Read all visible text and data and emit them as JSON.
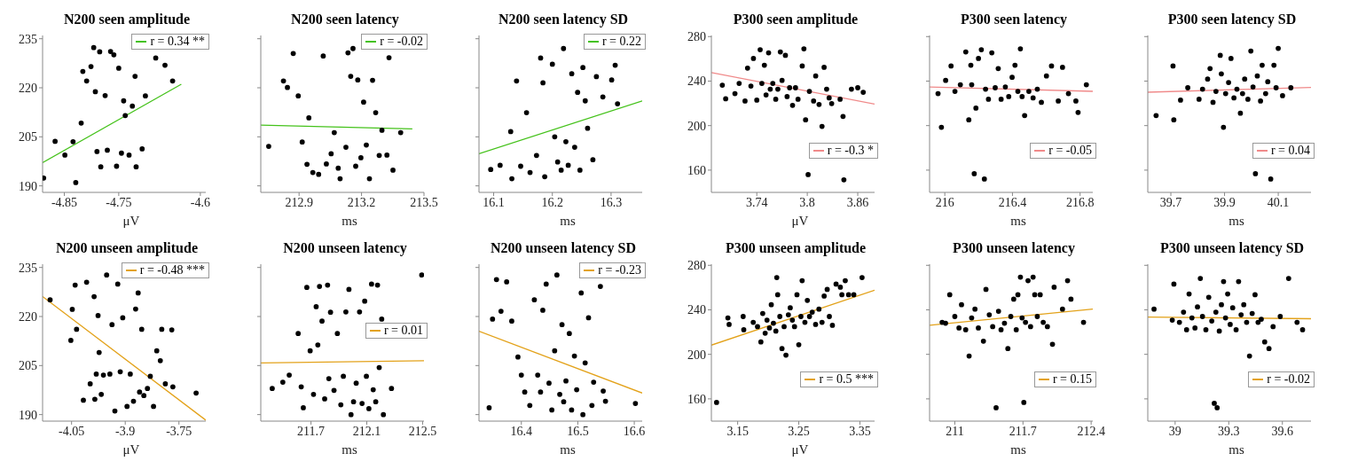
{
  "chart_data": [
    {
      "type": "scatter",
      "title": "N200 seen amplitude",
      "xlabel": "μV",
      "xlim": [
        -4.89,
        -4.59
      ],
      "xticks": [
        -4.85,
        -4.75,
        -4.6
      ],
      "ylim": [
        188,
        236
      ],
      "yticks": [
        190,
        205,
        220,
        235
      ],
      "legend": "top right",
      "series": [
        {
          "type": "scatter",
          "color": "#000000",
          "marker": "circle",
          "x": [
            -4.888,
            -4.867,
            -4.849,
            -4.834,
            -4.829,
            -4.819,
            -4.816,
            -4.809,
            -4.801,
            -4.796,
            -4.793,
            -4.79,
            -4.785,
            -4.783,
            -4.775,
            -4.771,
            -4.765,
            -4.759,
            -4.754,
            -4.75,
            -4.745,
            -4.741,
            -4.738,
            -4.731,
            -4.725,
            -4.72,
            -4.718,
            -4.707,
            -4.701,
            -4.682,
            -4.665,
            -4.651
          ],
          "values": [
            192.4,
            203.6,
            199.4,
            203.5,
            191.0,
            209.2,
            225.0,
            222.1,
            226.5,
            232.3,
            218.8,
            200.5,
            231.0,
            195.8,
            217.6,
            200.9,
            231.1,
            230.1,
            196.0,
            226.0,
            200.0,
            216.0,
            211.5,
            199.4,
            214.4,
            223.5,
            195.8,
            201.3,
            217.5,
            229.1,
            226.9,
            222.1
          ]
        },
        {
          "type": "line",
          "name": "r = 0.34 **",
          "color": "#44c21a",
          "marker": "none",
          "x": [
            -4.89,
            -4.635
          ],
          "values": [
            197.1,
            221.1
          ]
        }
      ]
    },
    {
      "type": "scatter",
      "title": "N200 seen latency",
      "xlabel": "ms",
      "xlim": [
        212.716,
        213.5
      ],
      "xticks": [
        212.9,
        213.2,
        213.5
      ],
      "ylim": [
        188,
        236
      ],
      "yticks": [
        190,
        205,
        220,
        235
      ],
      "tick_labels": "x",
      "legend": "top right",
      "series": [
        {
          "type": "scatter",
          "color": "#000000",
          "marker": "circle",
          "x": [
            212.754,
            212.825,
            212.844,
            212.872,
            212.896,
            212.915,
            212.938,
            212.947,
            212.966,
            212.994,
            213.016,
            213.031,
            213.054,
            213.069,
            213.088,
            213.097,
            213.125,
            213.135,
            213.148,
            213.159,
            213.172,
            213.182,
            213.197,
            213.21,
            213.223,
            213.238,
            213.253,
            213.268,
            213.285,
            213.298,
            213.322,
            213.332,
            213.351,
            213.388
          ],
          "values": [
            202.1,
            222.1,
            220.1,
            230.5,
            217.5,
            203.4,
            196.6,
            210.8,
            194.1,
            193.5,
            229.7,
            196.7,
            199.8,
            206.3,
            195.4,
            192.2,
            201.8,
            230.7,
            223.5,
            232.0,
            196.0,
            222.4,
            198.6,
            215.6,
            202.5,
            192.2,
            222.3,
            212.4,
            199.3,
            207.0,
            199.4,
            229.2,
            194.8,
            206.3
          ]
        },
        {
          "type": "line",
          "name": "r = -0.02",
          "color": "#44c21a",
          "marker": "none",
          "x": [
            212.716,
            213.444
          ],
          "values": [
            208.6,
            207.4
          ]
        }
      ]
    },
    {
      "type": "scatter",
      "title": "N200 seen latency SD",
      "xlabel": "ms",
      "xlim": [
        16.075,
        16.353
      ],
      "xticks": [
        16.1,
        16.2,
        16.3
      ],
      "ylim": [
        188,
        236
      ],
      "yticks": [
        190,
        205,
        220,
        235
      ],
      "tick_labels": "x",
      "legend": "top right",
      "series": [
        {
          "type": "scatter",
          "color": "#000000",
          "marker": "circle",
          "x": [
            16.095,
            16.111,
            16.129,
            16.131,
            16.139,
            16.146,
            16.156,
            16.162,
            16.173,
            16.18,
            16.184,
            16.187,
            16.2,
            16.204,
            16.209,
            16.215,
            16.219,
            16.223,
            16.227,
            16.233,
            16.238,
            16.243,
            16.247,
            16.252,
            16.256,
            16.26,
            16.269,
            16.275,
            16.286,
            16.301,
            16.307,
            16.311
          ],
          "values": [
            195.0,
            196.3,
            206.6,
            192.2,
            222.1,
            196.0,
            212.4,
            194.1,
            199.3,
            229.1,
            221.5,
            192.8,
            227.2,
            205.0,
            197.3,
            194.8,
            232.0,
            203.5,
            196.3,
            224.3,
            201.8,
            218.6,
            194.8,
            226.2,
            216.0,
            207.6,
            198.0,
            223.4,
            217.2,
            222.4,
            226.9,
            215.1
          ]
        },
        {
          "type": "line",
          "name": "r = 0.22",
          "color": "#44c21a",
          "marker": "none",
          "x": [
            16.075,
            16.353
          ],
          "values": [
            199.8,
            216.0
          ]
        }
      ]
    },
    {
      "type": "scatter",
      "title": "P300 seen amplitude",
      "xlabel": "μV",
      "xlim": [
        3.686,
        3.88
      ],
      "xticks": [
        3.74,
        3.8,
        3.86
      ],
      "ylim": [
        140,
        281
      ],
      "yticks": [
        160,
        200,
        240,
        280
      ],
      "legend": "bottom right",
      "series": [
        {
          "type": "scatter",
          "color": "#000000",
          "marker": "circle",
          "x": [
            3.699,
            3.703,
            3.714,
            3.719,
            3.726,
            3.729,
            3.733,
            3.736,
            3.74,
            3.744,
            3.746,
            3.749,
            3.751,
            3.754,
            3.756,
            3.759,
            3.7625,
            3.765,
            3.768,
            3.77,
            3.774,
            3.776,
            3.779,
            3.7825,
            3.786,
            3.789,
            3.794,
            3.796,
            3.798,
            3.801,
            3.8025,
            3.8075,
            3.81,
            3.814,
            3.8175,
            3.82,
            3.823,
            3.826,
            3.829,
            3.839,
            3.8425,
            3.8435,
            3.8525,
            3.86,
            3.8665
          ],
          "values": [
            236.3,
            224.1,
            228.8,
            237.9,
            222.1,
            251.7,
            235.5,
            260.3,
            222.9,
            268.2,
            237.9,
            254.3,
            227.6,
            265.4,
            232.8,
            237.9,
            223.7,
            232.8,
            266.2,
            240.6,
            263.1,
            226.1,
            234.0,
            218.2,
            234.0,
            223.7,
            253.6,
            269.0,
            205.2,
            156.0,
            230.8,
            222.1,
            244.6,
            219.0,
            199.3,
            252.4,
            232.8,
            224.9,
            219.8,
            223.7,
            208.3,
            151.3,
            232.8,
            234.0,
            230.0
          ]
        },
        {
          "type": "line",
          "name": "r = -0.3 *",
          "color": "#f08a8a",
          "marker": "none",
          "x": [
            3.686,
            3.88
          ],
          "values": [
            247.7,
            219.4
          ]
        }
      ]
    },
    {
      "type": "scatter",
      "title": "P300 seen latency",
      "xlabel": "ms",
      "xlim": [
        215.91,
        216.875
      ],
      "xticks": [
        216,
        216.4,
        216.8
      ],
      "ylim": [
        140,
        281
      ],
      "yticks": [
        160,
        200,
        240,
        280
      ],
      "tick_labels": "x",
      "legend": "bottom right",
      "series": [
        {
          "type": "scatter",
          "color": "#000000",
          "marker": "circle",
          "x": [
            215.96,
            215.98,
            216.005,
            216.037,
            216.06,
            216.092,
            216.124,
            216.142,
            216.154,
            216.159,
            216.174,
            216.184,
            216.199,
            216.216,
            216.234,
            216.241,
            216.258,
            216.278,
            216.298,
            216.316,
            216.333,
            216.358,
            216.378,
            216.398,
            216.415,
            216.432,
            216.447,
            216.457,
            216.472,
            216.497,
            216.522,
            216.547,
            216.571,
            216.601,
            216.631,
            216.671,
            216.696,
            216.731,
            216.775,
            216.788,
            216.837
          ],
          "values": [
            228.8,
            198.5,
            240.6,
            253.6,
            230.8,
            236.7,
            266.2,
            205.2,
            254.3,
            236.7,
            156.8,
            215.7,
            260.3,
            268.2,
            152.0,
            232.8,
            223.7,
            265.4,
            234.0,
            251.3,
            223.7,
            234.7,
            226.1,
            243.4,
            254.3,
            230.8,
            269.0,
            226.1,
            209.1,
            230.8,
            224.9,
            232.8,
            220.9,
            244.6,
            253.6,
            222.1,
            252.4,
            228.8,
            222.1,
            211.8,
            236.7
          ]
        },
        {
          "type": "line",
          "name": "r = -0.05",
          "color": "#f08a8a",
          "marker": "none",
          "x": [
            215.91,
            216.875
          ],
          "values": [
            234.7,
            230.8
          ]
        }
      ]
    },
    {
      "type": "scatter",
      "title": "P300 seen latency SD",
      "xlabel": "ms",
      "xlim": [
        39.614,
        40.222
      ],
      "xticks": [
        39.7,
        39.9,
        40.1
      ],
      "ylim": [
        140,
        281
      ],
      "yticks": [
        160,
        200,
        240,
        280
      ],
      "tick_labels": "x",
      "legend": "bottom right",
      "series": [
        {
          "type": "scatter",
          "color": "#000000",
          "marker": "circle",
          "x": [
            39.645,
            39.708,
            39.711,
            39.736,
            39.763,
            39.805,
            39.818,
            39.837,
            39.846,
            39.857,
            39.868,
            39.884,
            39.888,
            39.896,
            39.904,
            39.915,
            39.924,
            39.935,
            39.946,
            39.959,
            39.967,
            39.975,
            39.987,
            39.998,
            40.006,
            40.015,
            40.022,
            40.034,
            40.04,
            40.053,
            40.061,
            40.072,
            40.084,
            40.092,
            40.1,
            40.116,
            40.147
          ],
          "values": [
            209.1,
            253.6,
            205.2,
            222.9,
            234.0,
            223.7,
            232.8,
            241.8,
            251.3,
            220.9,
            230.8,
            263.1,
            246.5,
            198.5,
            228.8,
            238.7,
            260.3,
            224.9,
            232.8,
            211.1,
            228.8,
            241.8,
            223.7,
            267.0,
            234.7,
            156.8,
            244.6,
            222.1,
            254.3,
            228.8,
            239.4,
            152.0,
            254.3,
            234.0,
            269.4,
            226.9,
            234.0
          ]
        },
        {
          "type": "line",
          "name": "r = 0.04",
          "color": "#f08a8a",
          "marker": "none",
          "x": [
            39.614,
            40.222
          ],
          "values": [
            230.0,
            234.3
          ]
        }
      ]
    },
    {
      "type": "scatter",
      "title": "N200 unseen amplitude",
      "xlabel": "μV",
      "xlim": [
        -4.131,
        -3.675
      ],
      "xticks": [
        -4.05,
        -3.9,
        -3.75
      ],
      "ylim": [
        188,
        236
      ],
      "yticks": [
        190,
        205,
        220,
        235
      ],
      "legend": "top right",
      "series": [
        {
          "type": "scatter",
          "color": "#000000",
          "marker": "circle",
          "x": [
            -4.11,
            -4.052,
            -4.048,
            -4.04,
            -4.036,
            -4.017,
            -4.008,
            -3.998,
            -3.987,
            -3.985,
            -3.981,
            -3.976,
            -3.973,
            -3.967,
            -3.961,
            -3.952,
            -3.943,
            -3.937,
            -3.929,
            -3.921,
            -3.914,
            -3.907,
            -3.895,
            -3.886,
            -3.877,
            -3.871,
            -3.864,
            -3.86,
            -3.854,
            -3.848,
            -3.838,
            -3.83,
            -3.821,
            -3.812,
            -3.802,
            -3.798,
            -3.788,
            -3.77,
            -3.767,
            -3.702
          ],
          "values": [
            225.1,
            212.7,
            222.2,
            229.6,
            216.1,
            194.4,
            230.5,
            199.4,
            226.1,
            194.7,
            202.4,
            220.3,
            209.0,
            196.2,
            202.1,
            232.7,
            202.4,
            217.5,
            191.1,
            229.9,
            203.1,
            219.6,
            192.5,
            202.4,
            194.1,
            222.3,
            227.2,
            196.9,
            216.1,
            195.8,
            198.0,
            201.7,
            192.5,
            209.5,
            206.5,
            216.1,
            199.4,
            215.9,
            198.5,
            196.6
          ]
        },
        {
          "type": "line",
          "name": "r = -0.48 ***",
          "color": "#e3a21a",
          "marker": "none",
          "x": [
            -4.131,
            -3.675
          ],
          "values": [
            226.1,
            188.3
          ]
        }
      ]
    },
    {
      "type": "scatter",
      "title": "N200 unseen latency",
      "xlabel": "ms",
      "xlim": [
        211.34,
        212.51
      ],
      "xticks": [
        211.7,
        212.1,
        212.5
      ],
      "ylim": [
        188,
        236
      ],
      "yticks": [
        190,
        205,
        220,
        235
      ],
      "tick_labels": "x",
      "legend": "top right",
      "series": [
        {
          "type": "scatter",
          "color": "#000000",
          "marker": "circle",
          "x": [
            211.422,
            211.498,
            211.544,
            211.608,
            211.63,
            211.645,
            211.67,
            211.694,
            211.718,
            211.737,
            211.749,
            211.761,
            211.779,
            211.798,
            211.819,
            211.828,
            211.84,
            211.865,
            211.889,
            211.914,
            211.932,
            211.95,
            211.972,
            211.987,
            212.005,
            212.024,
            212.048,
            212.066,
            212.085,
            212.097,
            212.115,
            212.134,
            212.146,
            212.164,
            212.177,
            212.189,
            212.207,
            212.219,
            212.277,
            212.494
          ],
          "values": [
            198.0,
            199.9,
            202.1,
            214.8,
            198.5,
            192.1,
            228.9,
            209.5,
            196.2,
            223.0,
            211.3,
            229.2,
            218.6,
            194.8,
            229.6,
            201.0,
            221.3,
            197.4,
            214.8,
            193.0,
            201.7,
            221.4,
            228.3,
            190.0,
            193.9,
            199.6,
            221.4,
            193.4,
            224.7,
            201.7,
            191.8,
            229.9,
            197.6,
            193.9,
            229.6,
            204.4,
            219.2,
            190.0,
            198.0,
            232.7
          ]
        },
        {
          "type": "line",
          "name": "r = 0.01",
          "color": "#e3a21a",
          "marker": "none",
          "x": [
            211.34,
            212.51
          ],
          "values": [
            205.8,
            206.5
          ]
        }
      ]
    },
    {
      "type": "scatter",
      "title": "N200 unseen latency SD",
      "xlabel": "ms",
      "xlim": [
        16.325,
        16.614
      ],
      "xticks": [
        16.4,
        16.5,
        16.6
      ],
      "ylim": [
        188,
        236
      ],
      "yticks": [
        190,
        205,
        220,
        235
      ],
      "tick_labels": "x",
      "legend": "top right",
      "series": [
        {
          "type": "scatter",
          "color": "#000000",
          "marker": "circle",
          "x": [
            16.343,
            16.349,
            16.356,
            16.364,
            16.374,
            16.383,
            16.394,
            16.4,
            16.406,
            16.415,
            16.423,
            16.429,
            16.434,
            16.438,
            16.444,
            16.449,
            16.454,
            16.459,
            16.463,
            16.468,
            16.472,
            16.475,
            16.479,
            16.485,
            16.489,
            16.494,
            16.498,
            16.506,
            16.509,
            16.513,
            16.519,
            16.525,
            16.528,
            16.54,
            16.545,
            16.549,
            16.602
          ],
          "values": [
            192.1,
            219.2,
            231.3,
            221.6,
            230.6,
            218.6,
            207.6,
            202.1,
            196.9,
            192.8,
            225.1,
            202.1,
            196.9,
            221.9,
            229.9,
            199.6,
            191.4,
            209.5,
            232.7,
            196.2,
            217.5,
            193.9,
            200.3,
            214.8,
            191.4,
            207.9,
            197.6,
            227.2,
            190.0,
            205.8,
            219.6,
            192.8,
            199.9,
            229.2,
            197.2,
            194.1,
            193.4
          ]
        },
        {
          "type": "line",
          "name": "r = -0.23",
          "color": "#e3a21a",
          "marker": "none",
          "x": [
            16.325,
            16.614
          ],
          "values": [
            215.5,
            196.6
          ]
        }
      ]
    },
    {
      "type": "scatter",
      "title": "P300 unseen amplitude",
      "xlabel": "μV",
      "xlim": [
        3.107,
        3.374
      ],
      "xticks": [
        3.15,
        3.25,
        3.35
      ],
      "ylim": [
        140,
        281
      ],
      "yticks": [
        160,
        200,
        240,
        280
      ],
      "legend": "bottom right",
      "series": [
        {
          "type": "scatter",
          "color": "#000000",
          "marker": "circle",
          "x": [
            3.1155,
            3.134,
            3.136,
            3.159,
            3.16,
            3.1755,
            3.1825,
            3.188,
            3.191,
            3.195,
            3.198,
            3.202,
            3.205,
            3.2085,
            3.2125,
            3.2155,
            3.214,
            3.219,
            3.2225,
            3.226,
            3.229,
            3.233,
            3.236,
            3.2395,
            3.243,
            3.247,
            3.25,
            3.2535,
            3.2555,
            3.26,
            3.264,
            3.2675,
            3.272,
            3.2775,
            3.283,
            3.288,
            3.2915,
            3.2965,
            3.3,
            3.305,
            3.311,
            3.318,
            3.3205,
            3.326,
            3.3315,
            3.34,
            3.3535
          ],
          "values": [
            156.8,
            232.8,
            226.9,
            234.0,
            222.1,
            228.8,
            224.9,
            211.1,
            236.7,
            219.0,
            230.8,
            223.7,
            244.6,
            228.0,
            220.9,
            253.6,
            269.0,
            234.0,
            205.2,
            224.9,
            199.3,
            235.5,
            241.8,
            230.8,
            224.9,
            253.6,
            208.7,
            234.0,
            266.2,
            228.8,
            248.5,
            234.0,
            237.9,
            226.9,
            240.6,
            228.8,
            252.4,
            258.3,
            234.0,
            226.1,
            263.1,
            260.3,
            253.6,
            266.2,
            253.6,
            253.6,
            269.0
          ]
        },
        {
          "type": "line",
          "name": "r = 0.5 ***",
          "color": "#e3a21a",
          "marker": "none",
          "x": [
            3.107,
            3.374
          ],
          "values": [
            208.3,
            257.6
          ]
        }
      ]
    },
    {
      "type": "scatter",
      "title": "P300 unseen latency",
      "xlabel": "ms",
      "xlim": [
        210.741,
        212.417
      ],
      "xticks": [
        211,
        211.7,
        212.4
      ],
      "ylim": [
        140,
        281
      ],
      "yticks": [
        160,
        200,
        240,
        280
      ],
      "tick_labels": "x",
      "legend": "bottom right",
      "series": [
        {
          "type": "scatter",
          "color": "#000000",
          "marker": "circle",
          "x": [
            210.87,
            210.905,
            210.948,
            211.0,
            211.043,
            211.069,
            211.112,
            211.147,
            211.173,
            211.207,
            211.242,
            211.294,
            211.32,
            211.354,
            211.389,
            211.424,
            211.449,
            211.475,
            211.51,
            211.545,
            211.575,
            211.605,
            211.631,
            211.648,
            211.674,
            211.691,
            211.709,
            211.726,
            211.752,
            211.778,
            211.804,
            211.821,
            211.847,
            211.877,
            211.908,
            211.951,
            212.003,
            212.02,
            212.106,
            212.158,
            212.193,
            212.322
          ],
          "values": [
            228.8,
            228.0,
            253.6,
            234.0,
            223.7,
            244.6,
            222.1,
            198.5,
            232.8,
            240.6,
            223.7,
            211.8,
            258.3,
            235.5,
            224.9,
            152.0,
            238.7,
            222.1,
            228.0,
            205.2,
            234.0,
            249.6,
            222.1,
            253.6,
            269.4,
            232.8,
            156.8,
            228.8,
            266.2,
            224.9,
            269.4,
            253.6,
            234.0,
            253.6,
            228.8,
            224.9,
            209.1,
            260.3,
            240.6,
            266.2,
            249.6,
            228.8
          ]
        },
        {
          "type": "line",
          "name": "r = 0.15",
          "color": "#e3a21a",
          "marker": "none",
          "x": [
            210.741,
            212.417
          ],
          "values": [
            226.1,
            240.6
          ]
        }
      ]
    },
    {
      "type": "scatter",
      "title": "P300 unseen latency SD",
      "xlabel": "ms",
      "xlim": [
        38.847,
        39.76
      ],
      "xticks": [
        39,
        39.3,
        39.6
      ],
      "ylim": [
        140,
        281
      ],
      "yticks": [
        160,
        200,
        240,
        280
      ],
      "tick_labels": "x",
      "legend": "bottom right",
      "series": [
        {
          "type": "scatter",
          "color": "#000000",
          "marker": "circle",
          "x": [
            38.882,
            38.984,
            38.993,
            39.024,
            39.047,
            39.064,
            39.078,
            39.094,
            39.111,
            39.125,
            39.141,
            39.153,
            39.172,
            39.188,
            39.205,
            39.219,
            39.228,
            39.235,
            39.247,
            39.259,
            39.271,
            39.282,
            39.294,
            39.308,
            39.322,
            39.341,
            39.355,
            39.369,
            39.384,
            39.4,
            39.416,
            39.431,
            39.447,
            39.464,
            39.482,
            39.501,
            39.525,
            39.548,
            39.588,
            39.635,
            39.682,
            39.713
          ],
          "values": [
            240.6,
            230.8,
            263.1,
            228.8,
            237.9,
            222.1,
            254.3,
            232.8,
            223.7,
            242.6,
            268.2,
            234.0,
            222.1,
            251.3,
            230.0,
            156.0,
            237.9,
            152.0,
            220.9,
            244.6,
            265.4,
            232.8,
            254.3,
            226.9,
            241.8,
            222.1,
            265.4,
            235.5,
            244.6,
            228.8,
            198.5,
            236.7,
            253.6,
            228.8,
            231.6,
            211.1,
            205.2,
            224.9,
            234.0,
            268.2,
            228.8,
            222.1
          ]
        },
        {
          "type": "line",
          "name": "r = -0.02",
          "color": "#e3a21a",
          "marker": "none",
          "x": [
            38.847,
            39.76
          ],
          "values": [
            233.5,
            232.0
          ]
        }
      ]
    }
  ]
}
